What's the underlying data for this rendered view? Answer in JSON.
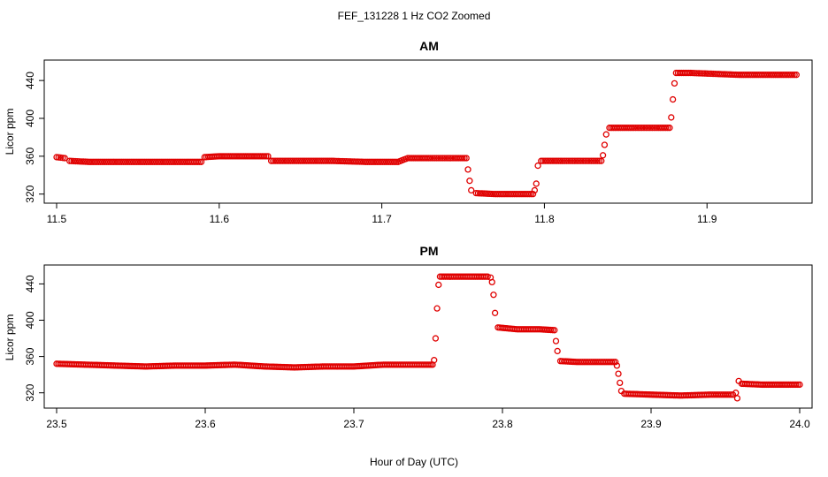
{
  "figure": {
    "title": "FEF_131228  1 Hz CO2 Zoomed",
    "xlabel": "Hour of Day (UTC)"
  },
  "chart_data": [
    {
      "type": "scatter",
      "title": "AM",
      "xlabel": "",
      "ylabel": "Licor ppm",
      "xlim": [
        11.5,
        11.957
      ],
      "ylim": [
        316,
        456
      ],
      "xticks": [
        11.5,
        11.6,
        11.7,
        11.8,
        11.9
      ],
      "xtick_labels": [
        "11.5",
        "11.6",
        "11.7",
        "11.8",
        "11.9"
      ],
      "yticks": [
        320,
        360,
        400,
        440
      ],
      "ytick_labels": [
        "320",
        "360",
        "400",
        "440"
      ],
      "series": [
        {
          "color": "#e00000",
          "marker": "open-circle",
          "points": [
            [
              11.5,
              359
            ],
            [
              11.505,
              358
            ],
            [
              11.508,
              355
            ],
            [
              11.52,
              354
            ],
            [
              11.54,
              354
            ],
            [
              11.56,
              354
            ],
            [
              11.58,
              354
            ],
            [
              11.589,
              354
            ],
            [
              11.591,
              359
            ],
            [
              11.6,
              360
            ],
            [
              11.615,
              360
            ],
            [
              11.63,
              360
            ],
            [
              11.632,
              355
            ],
            [
              11.65,
              355
            ],
            [
              11.67,
              355
            ],
            [
              11.69,
              354
            ],
            [
              11.71,
              354
            ],
            [
              11.716,
              358
            ],
            [
              11.73,
              358
            ],
            [
              11.745,
              358
            ],
            [
              11.752,
              358
            ],
            [
              11.753,
              346
            ],
            [
              11.754,
              334
            ],
            [
              11.755,
              324
            ],
            [
              11.758,
              321
            ],
            [
              11.77,
              320
            ],
            [
              11.785,
              320
            ],
            [
              11.793,
              320
            ],
            [
              11.794,
              324
            ],
            [
              11.795,
              331
            ],
            [
              11.796,
              350
            ],
            [
              11.798,
              355
            ],
            [
              11.81,
              355
            ],
            [
              11.825,
              355
            ],
            [
              11.835,
              355
            ],
            [
              11.836,
              361
            ],
            [
              11.837,
              372
            ],
            [
              11.838,
              383
            ],
            [
              11.84,
              390
            ],
            [
              11.855,
              390
            ],
            [
              11.87,
              390
            ],
            [
              11.877,
              390
            ],
            [
              11.878,
              401
            ],
            [
              11.879,
              420
            ],
            [
              11.88,
              437
            ],
            [
              11.881,
              448
            ],
            [
              11.89,
              448
            ],
            [
              11.905,
              447
            ],
            [
              11.92,
              446
            ],
            [
              11.935,
              446
            ],
            [
              11.955,
              446
            ]
          ]
        }
      ]
    },
    {
      "type": "scatter",
      "title": "PM",
      "xlabel": "",
      "ylabel": "Licor ppm",
      "xlim": [
        23.5,
        24.0
      ],
      "ylim": [
        309,
        455
      ],
      "xticks": [
        23.5,
        23.6,
        23.7,
        23.8,
        23.9,
        24.0
      ],
      "xtick_labels": [
        "23.5",
        "23.6",
        "23.7",
        "23.8",
        "23.9",
        "24.0"
      ],
      "yticks": [
        320,
        360,
        400,
        440
      ],
      "ytick_labels": [
        "320",
        "360",
        "400",
        "440"
      ],
      "series": [
        {
          "color": "#e00000",
          "marker": "open-circle",
          "points": [
            [
              23.5,
              352
            ],
            [
              23.52,
              351
            ],
            [
              23.54,
              350
            ],
            [
              23.56,
              349
            ],
            [
              23.58,
              350
            ],
            [
              23.6,
              350
            ],
            [
              23.62,
              351
            ],
            [
              23.64,
              349
            ],
            [
              23.66,
              348
            ],
            [
              23.68,
              349
            ],
            [
              23.7,
              349
            ],
            [
              23.72,
              351
            ],
            [
              23.74,
              351
            ],
            [
              23.753,
              351
            ],
            [
              23.754,
              356
            ],
            [
              23.755,
              380
            ],
            [
              23.756,
              413
            ],
            [
              23.757,
              439
            ],
            [
              23.758,
              448
            ],
            [
              23.775,
              448
            ],
            [
              23.79,
              448
            ],
            [
              23.792,
              447
            ],
            [
              23.793,
              442
            ],
            [
              23.794,
              428
            ],
            [
              23.795,
              408
            ],
            [
              23.797,
              392
            ],
            [
              23.81,
              390
            ],
            [
              23.825,
              390
            ],
            [
              23.835,
              389
            ],
            [
              23.836,
              377
            ],
            [
              23.837,
              366
            ],
            [
              23.839,
              355
            ],
            [
              23.85,
              354
            ],
            [
              23.865,
              354
            ],
            [
              23.876,
              354
            ],
            [
              23.877,
              350
            ],
            [
              23.878,
              341
            ],
            [
              23.879,
              331
            ],
            [
              23.88,
              322
            ],
            [
              23.882,
              319
            ],
            [
              23.9,
              318
            ],
            [
              23.92,
              317
            ],
            [
              23.94,
              318
            ],
            [
              23.955,
              318
            ],
            [
              23.957,
              320
            ],
            [
              23.958,
              314
            ],
            [
              23.959,
              333
            ],
            [
              23.961,
              330
            ],
            [
              23.975,
              329
            ],
            [
              23.99,
              329
            ],
            [
              24.0,
              329
            ]
          ]
        }
      ]
    }
  ]
}
